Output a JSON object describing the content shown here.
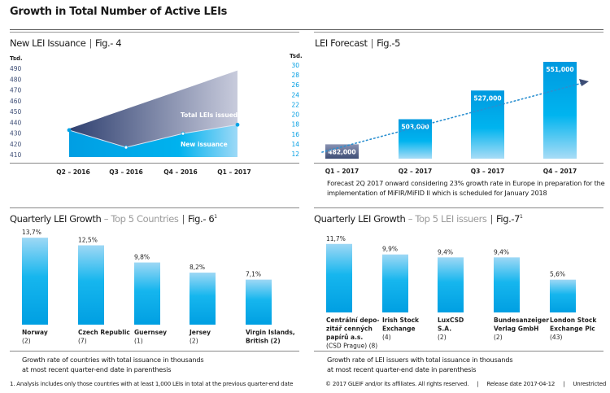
{
  "page_title": "Growth in Total Number of Active LEIs",
  "colors": {
    "accent": "#00a3e6",
    "dark": "#3d4d75",
    "muted": "#9a9a9a"
  },
  "chart_data": [
    {
      "type": "area",
      "title": "New LEI Issuance",
      "fig": "Fig.- 4",
      "categories": [
        "Q2 – 2016",
        "Q3 – 2016",
        "Q4 – 2016",
        "Q1 – 2017"
      ],
      "left_axis": {
        "unit": "Tsd.",
        "ylim": [
          410,
          490
        ],
        "ticks": [
          490,
          480,
          470,
          460,
          450,
          440,
          430,
          420,
          410
        ]
      },
      "right_axis": {
        "unit": "Tsd.",
        "ylim": [
          12,
          30
        ],
        "ticks": [
          30,
          28,
          26,
          24,
          22,
          20,
          18,
          16,
          14,
          12
        ]
      },
      "series": [
        {
          "name": "Total LEIs issued",
          "axis": "left",
          "values": [
            434,
            452,
            470,
            488
          ]
        },
        {
          "name": "New issuance",
          "axis": "right",
          "values": [
            16.8,
            13.3,
            16.1,
            17.9
          ]
        }
      ]
    },
    {
      "type": "bar",
      "title": "LEI Forecast",
      "fig": "Fig.-5",
      "categories": [
        "Q1 – 2017",
        "Q2 – 2017",
        "Q3 – 2017",
        "Q4 – 2017"
      ],
      "values": [
        482000,
        503000,
        527000,
        551000
      ],
      "data_labels": [
        "482,000",
        "503,000",
        "527,000",
        "551,000"
      ],
      "note": [
        "Forecast 2Q 2017 onward considering 23% growth rate in Europe in preparation for the",
        "implementation of MiFIR/MiFID II which is scheduled for January 2018"
      ]
    },
    {
      "type": "bar",
      "title": "Quarterly LEI Growth",
      "subtitle": "Top 5 Countries",
      "fig": "Fig.- 6",
      "fig_sup": "1",
      "categories": [
        [
          "Norway",
          "(2)"
        ],
        [
          "Czech Republic",
          "(7)"
        ],
        [
          "Guernsey",
          "(1)"
        ],
        [
          "Jersey",
          "(2)"
        ],
        [
          "Virgin Islands,",
          "British (2)"
        ]
      ],
      "values": [
        13.7,
        12.5,
        9.8,
        8.2,
        7.1
      ],
      "data_labels": [
        "13,7%",
        "12,5%",
        "9,8%",
        "8,2%",
        "7,1%"
      ],
      "note": [
        "Growth rate of countries with total issuance in thousands",
        "at most recent quarter-end date in parenthesis"
      ]
    },
    {
      "type": "bar",
      "title": "Quarterly LEI Growth",
      "subtitle": "Top 5 LEI issuers",
      "fig": "Fig.-7",
      "fig_sup": "1",
      "categories": [
        [
          "Centrální depo-",
          "zitář cenných",
          "papírů a.s.",
          "(CSD Prague) (8)"
        ],
        [
          "Irish Stock",
          "Exchange",
          "(4)"
        ],
        [
          "LuxCSD",
          "S.A.",
          "(2)"
        ],
        [
          "Bundesanzeiger",
          "Verlag GmbH",
          "(2)"
        ],
        [
          "London Stock",
          "Exchange Plc",
          "(43)"
        ]
      ],
      "values": [
        11.7,
        9.9,
        9.4,
        9.4,
        5.6
      ],
      "data_labels": [
        "11,7%",
        "9,9%",
        "9,4%",
        "9,4%",
        "5,6%"
      ],
      "note": [
        "Growth rate of LEI issuers with total issuance in thousands",
        "at most recent quarter-end date in parenthesis"
      ]
    }
  ],
  "footnote": "1. Analysis includes only those countries with at least 1,000 LEIs in total at the previous quarter-end date",
  "footer": {
    "copyright": "© 2017 GLEIF and/or its affiliates. All rights reserved.",
    "release": "Release date 2017-04-12",
    "classification": "Unrestricted"
  }
}
